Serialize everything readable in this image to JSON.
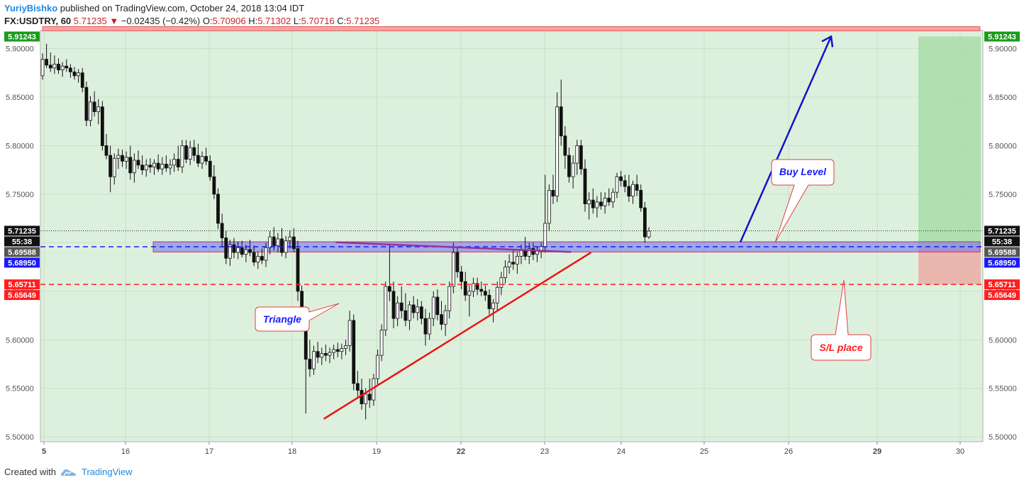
{
  "header": {
    "author": "YuriyBishko",
    "published": " published on TradingView.com, October 24, 2018 13:04 IDT",
    "symbol": "FX:USDTRY, 60",
    "price": "5.71235",
    "change": "−0.02435 (−0.42%)",
    "o_label": "O:",
    "o_value": "5.70906",
    "h_label": "H:",
    "h_value": "5.71302",
    "l_label": "L:",
    "l_value": "5.70716",
    "c_label": "C:",
    "c_value": "5.71235"
  },
  "footer": {
    "created_with": "Created with",
    "brand": "TradingView"
  },
  "chart_data": {
    "type": "candlestick",
    "symbol": "FX:USDTRY",
    "interval": "60",
    "ylim": [
      5.495,
      5.915
    ],
    "yticks": [
      "5.90000",
      "5.85000",
      "5.80000",
      "5.75000",
      "5.70000",
      "5.65000",
      "5.60000",
      "5.55000",
      "5.50000"
    ],
    "xticks": [
      "5",
      "16",
      "17",
      "18",
      "19",
      "22",
      "23",
      "24",
      "25",
      "26",
      "29",
      "30"
    ],
    "price_tags": [
      {
        "text": "5.91243",
        "value": 5.91243,
        "bg": "#1a9c1a",
        "fg": "#ffffff"
      },
      {
        "text": "5.71235",
        "value": 5.71235,
        "bg": "#111111",
        "fg": "#ffffff"
      },
      {
        "text": "55:38",
        "value": 5.7015,
        "bg": "#111111",
        "fg": "#ffffff"
      },
      {
        "text": "5.69588",
        "value": 5.69588,
        "bg": "#555555",
        "fg": "#ffffff"
      },
      {
        "text": "5.68950",
        "value": 5.6895,
        "bg": "#1a1aff",
        "fg": "#ffffff"
      },
      {
        "text": "5.65711",
        "value": 5.65711,
        "bg": "#ff1e1e",
        "fg": "#ffffff"
      },
      {
        "text": "5.65649",
        "value": 5.65649,
        "bg": "#ff1e1e",
        "fg": "#ffffff"
      }
    ],
    "left_tags": [
      "5.91243",
      "5.71235",
      "55:38",
      "5.69588",
      "5.68950",
      "5.65711",
      "5.65649"
    ],
    "right_tags": [
      "5.91243",
      "5.71235",
      "55:38",
      "5.69588",
      "5.68950",
      "5.65711",
      "5.65649"
    ],
    "levels": {
      "buy_level": 5.69588,
      "zone_top": 5.701,
      "zone_bottom": 5.6905,
      "stop_loss": 5.65711,
      "target": 5.91243,
      "current": 5.71235
    },
    "annotations": [
      {
        "text": "Buy Level",
        "color": "#1a1aff"
      },
      {
        "text": "Triangle",
        "color": "#1a1aff"
      },
      {
        "text": "S/L place",
        "color": "#ff1e1e"
      }
    ],
    "candles": [
      [
        5.872,
        5.895,
        5.868,
        5.889
      ],
      [
        5.889,
        5.905,
        5.88,
        5.883
      ],
      [
        5.883,
        5.896,
        5.876,
        5.88
      ],
      [
        5.88,
        5.893,
        5.874,
        5.884
      ],
      [
        5.884,
        5.89,
        5.874,
        5.878
      ],
      [
        5.878,
        5.886,
        5.871,
        5.882
      ],
      [
        5.882,
        5.889,
        5.876,
        5.88
      ],
      [
        5.88,
        5.884,
        5.87,
        5.876
      ],
      [
        5.876,
        5.881,
        5.868,
        5.872
      ],
      [
        5.872,
        5.879,
        5.865,
        5.875
      ],
      [
        5.875,
        5.88,
        5.855,
        5.86
      ],
      [
        5.86,
        5.866,
        5.82,
        5.826
      ],
      [
        5.826,
        5.851,
        5.82,
        5.845
      ],
      [
        5.845,
        5.856,
        5.83,
        5.835
      ],
      [
        5.835,
        5.848,
        5.822,
        5.84
      ],
      [
        5.84,
        5.846,
        5.795,
        5.8
      ],
      [
        5.8,
        5.812,
        5.786,
        5.79
      ],
      [
        5.79,
        5.8,
        5.752,
        5.768
      ],
      [
        5.768,
        5.792,
        5.76,
        5.787
      ],
      [
        5.787,
        5.797,
        5.776,
        5.79
      ],
      [
        5.79,
        5.796,
        5.778,
        5.784
      ],
      [
        5.784,
        5.794,
        5.776,
        5.788
      ],
      [
        5.788,
        5.8,
        5.765,
        5.772
      ],
      [
        5.772,
        5.792,
        5.762,
        5.785
      ],
      [
        5.785,
        5.795,
        5.776,
        5.78
      ],
      [
        5.78,
        5.79,
        5.77,
        5.775
      ],
      [
        5.775,
        5.786,
        5.768,
        5.78
      ],
      [
        5.78,
        5.787,
        5.772,
        5.778
      ],
      [
        5.778,
        5.786,
        5.77,
        5.782
      ],
      [
        5.782,
        5.791,
        5.773,
        5.776
      ],
      [
        5.776,
        5.788,
        5.77,
        5.781
      ],
      [
        5.781,
        5.79,
        5.773,
        5.777
      ],
      [
        5.777,
        5.786,
        5.77,
        5.78
      ],
      [
        5.78,
        5.792,
        5.773,
        5.786
      ],
      [
        5.786,
        5.8,
        5.774,
        5.778
      ],
      [
        5.778,
        5.806,
        5.772,
        5.8
      ],
      [
        5.8,
        5.806,
        5.782,
        5.786
      ],
      [
        5.786,
        5.805,
        5.78,
        5.798
      ],
      [
        5.798,
        5.806,
        5.784,
        5.79
      ],
      [
        5.79,
        5.802,
        5.778,
        5.782
      ],
      [
        5.782,
        5.794,
        5.776,
        5.789
      ],
      [
        5.789,
        5.798,
        5.78,
        5.784
      ],
      [
        5.784,
        5.79,
        5.764,
        5.768
      ],
      [
        5.768,
        5.78,
        5.745,
        5.75
      ],
      [
        5.75,
        5.756,
        5.714,
        5.72
      ],
      [
        5.72,
        5.73,
        5.695,
        5.705
      ],
      [
        5.705,
        5.712,
        5.678,
        5.684
      ],
      [
        5.684,
        5.703,
        5.676,
        5.698
      ],
      [
        5.698,
        5.705,
        5.684,
        5.69
      ],
      [
        5.69,
        5.701,
        5.683,
        5.695
      ],
      [
        5.695,
        5.702,
        5.685,
        5.688
      ],
      [
        5.688,
        5.698,
        5.68,
        5.693
      ],
      [
        5.693,
        5.703,
        5.686,
        5.69
      ],
      [
        5.69,
        5.697,
        5.676,
        5.68
      ],
      [
        5.68,
        5.691,
        5.673,
        5.686
      ],
      [
        5.686,
        5.694,
        5.678,
        5.682
      ],
      [
        5.682,
        5.7,
        5.675,
        5.695
      ],
      [
        5.695,
        5.712,
        5.688,
        5.706
      ],
      [
        5.706,
        5.716,
        5.692,
        5.697
      ],
      [
        5.697,
        5.71,
        5.69,
        5.704
      ],
      [
        5.704,
        5.715,
        5.686,
        5.69
      ],
      [
        5.69,
        5.707,
        5.684,
        5.702
      ],
      [
        5.702,
        5.713,
        5.694,
        5.706
      ],
      [
        5.706,
        5.715,
        5.69,
        5.694
      ],
      [
        5.694,
        5.702,
        5.64,
        5.65
      ],
      [
        5.65,
        5.656,
        5.612,
        5.618
      ],
      [
        5.618,
        5.624,
        5.524,
        5.58
      ],
      [
        5.58,
        5.6,
        5.562,
        5.57
      ],
      [
        5.57,
        5.594,
        5.564,
        5.588
      ],
      [
        5.588,
        5.598,
        5.576,
        5.582
      ],
      [
        5.582,
        5.592,
        5.574,
        5.586
      ],
      [
        5.586,
        5.595,
        5.578,
        5.584
      ],
      [
        5.584,
        5.592,
        5.576,
        5.587
      ],
      [
        5.587,
        5.595,
        5.58,
        5.59
      ],
      [
        5.59,
        5.597,
        5.582,
        5.588
      ],
      [
        5.588,
        5.596,
        5.58,
        5.591
      ],
      [
        5.591,
        5.6,
        5.584,
        5.594
      ],
      [
        5.594,
        5.63,
        5.588,
        5.62
      ],
      [
        5.62,
        5.626,
        5.548,
        5.555
      ],
      [
        5.555,
        5.568,
        5.54,
        5.548
      ],
      [
        5.548,
        5.56,
        5.528,
        5.534
      ],
      [
        5.534,
        5.55,
        5.518,
        5.544
      ],
      [
        5.544,
        5.56,
        5.53,
        5.538
      ],
      [
        5.538,
        5.565,
        5.532,
        5.56
      ],
      [
        5.56,
        5.59,
        5.554,
        5.584
      ],
      [
        5.584,
        5.616,
        5.578,
        5.61
      ],
      [
        5.61,
        5.66,
        5.604,
        5.655
      ],
      [
        5.655,
        5.698,
        5.64,
        5.65
      ],
      [
        5.65,
        5.66,
        5.612,
        5.622
      ],
      [
        5.622,
        5.645,
        5.614,
        5.638
      ],
      [
        5.638,
        5.655,
        5.622,
        5.63
      ],
      [
        5.63,
        5.648,
        5.614,
        5.62
      ],
      [
        5.62,
        5.64,
        5.61,
        5.636
      ],
      [
        5.636,
        5.645,
        5.622,
        5.628
      ],
      [
        5.628,
        5.642,
        5.62,
        5.634
      ],
      [
        5.634,
        5.64,
        5.616,
        5.622
      ],
      [
        5.622,
        5.632,
        5.594,
        5.606
      ],
      [
        5.606,
        5.628,
        5.6,
        5.622
      ],
      [
        5.622,
        5.65,
        5.614,
        5.644
      ],
      [
        5.644,
        5.652,
        5.62,
        5.626
      ],
      [
        5.626,
        5.64,
        5.61,
        5.616
      ],
      [
        5.616,
        5.636,
        5.604,
        5.63
      ],
      [
        5.63,
        5.66,
        5.622,
        5.655
      ],
      [
        5.655,
        5.7,
        5.648,
        5.69
      ],
      [
        5.69,
        5.696,
        5.664,
        5.67
      ],
      [
        5.67,
        5.676,
        5.652,
        5.66
      ],
      [
        5.66,
        5.67,
        5.64,
        5.646
      ],
      [
        5.646,
        5.656,
        5.624,
        5.65
      ],
      [
        5.65,
        5.664,
        5.644,
        5.658
      ],
      [
        5.658,
        5.664,
        5.646,
        5.652
      ],
      [
        5.652,
        5.66,
        5.645,
        5.65
      ],
      [
        5.65,
        5.656,
        5.64,
        5.646
      ],
      [
        5.646,
        5.652,
        5.626,
        5.632
      ],
      [
        5.632,
        5.642,
        5.618,
        5.638
      ],
      [
        5.638,
        5.66,
        5.63,
        5.654
      ],
      [
        5.654,
        5.67,
        5.646,
        5.664
      ],
      [
        5.664,
        5.682,
        5.658,
        5.675
      ],
      [
        5.675,
        5.688,
        5.668,
        5.68
      ],
      [
        5.68,
        5.692,
        5.672,
        5.678
      ],
      [
        5.678,
        5.69,
        5.668,
        5.686
      ],
      [
        5.686,
        5.698,
        5.678,
        5.692
      ],
      [
        5.692,
        5.706,
        5.682,
        5.686
      ],
      [
        5.686,
        5.7,
        5.678,
        5.694
      ],
      [
        5.694,
        5.7,
        5.682,
        5.688
      ],
      [
        5.688,
        5.696,
        5.68,
        5.692
      ],
      [
        5.692,
        5.7,
        5.684,
        5.696
      ],
      [
        5.696,
        5.77,
        5.69,
        5.72
      ],
      [
        5.72,
        5.76,
        5.712,
        5.754
      ],
      [
        5.754,
        5.77,
        5.74,
        5.748
      ],
      [
        5.748,
        5.855,
        5.742,
        5.84
      ],
      [
        5.84,
        5.868,
        5.8,
        5.81
      ],
      [
        5.81,
        5.82,
        5.776,
        5.79
      ],
      [
        5.79,
        5.798,
        5.762,
        5.768
      ],
      [
        5.768,
        5.79,
        5.756,
        5.782
      ],
      [
        5.782,
        5.806,
        5.77,
        5.8
      ],
      [
        5.8,
        5.806,
        5.77,
        5.776
      ],
      [
        5.776,
        5.786,
        5.732,
        5.74
      ],
      [
        5.74,
        5.752,
        5.724,
        5.744
      ],
      [
        5.744,
        5.756,
        5.73,
        5.736
      ],
      [
        5.736,
        5.748,
        5.726,
        5.742
      ],
      [
        5.742,
        5.752,
        5.734,
        5.738
      ],
      [
        5.738,
        5.752,
        5.73,
        5.746
      ],
      [
        5.746,
        5.756,
        5.738,
        5.742
      ],
      [
        5.742,
        5.756,
        5.736,
        5.752
      ],
      [
        5.752,
        5.772,
        5.746,
        5.768
      ],
      [
        5.768,
        5.774,
        5.758,
        5.764
      ],
      [
        5.764,
        5.77,
        5.752,
        5.758
      ],
      [
        5.758,
        5.77,
        5.742,
        5.748
      ],
      [
        5.748,
        5.764,
        5.74,
        5.76
      ],
      [
        5.76,
        5.77,
        5.748,
        5.754
      ],
      [
        5.754,
        5.76,
        5.732,
        5.736
      ],
      [
        5.736,
        5.742,
        5.7,
        5.706
      ],
      [
        5.706,
        5.716,
        5.704,
        5.712
      ]
    ]
  }
}
